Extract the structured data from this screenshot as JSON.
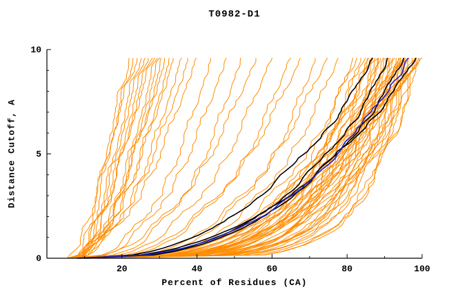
{
  "chart_data": {
    "type": "line",
    "title": "T0982-D1",
    "xlabel": "Percent of Residues (CA)",
    "ylabel": "Distance Cutoff, A",
    "xlim": [
      0,
      100
    ],
    "ylim": [
      0,
      10
    ],
    "x_major_ticks": [
      20,
      40,
      60,
      80,
      100
    ],
    "x_minor_step": 10,
    "y_major_ticks": [
      0,
      5,
      10
    ],
    "y_minor_step": 1,
    "axis_color": "#000000",
    "cutoff_max": 9.6,
    "curve_format": [
      "start_pct_at_cutoff0",
      "end_pct_at_cutoff9.6",
      "shape_exponent"
    ],
    "series_groups": [
      {
        "name": "prediction-models",
        "color": "#ff8c00",
        "width": 1,
        "noise": 1.5,
        "curves": [
          [
            6,
            100,
            0.16
          ],
          [
            8,
            99.5,
            0.15
          ],
          [
            7,
            99,
            0.2
          ],
          [
            9,
            99,
            0.24
          ],
          [
            10,
            98.5,
            0.18
          ],
          [
            8,
            98,
            0.3
          ],
          [
            11,
            98,
            0.22
          ],
          [
            7,
            97.5,
            0.17
          ],
          [
            9,
            97,
            0.27
          ],
          [
            12,
            97,
            0.2
          ],
          [
            8,
            96.5,
            0.33
          ],
          [
            10,
            96,
            0.19
          ],
          [
            6,
            96,
            0.26
          ],
          [
            9,
            95.5,
            0.22
          ],
          [
            11,
            95,
            0.3
          ],
          [
            7,
            95,
            0.18
          ],
          [
            10,
            94.5,
            0.25
          ],
          [
            8,
            94,
            0.21
          ],
          [
            12,
            94,
            0.35
          ],
          [
            9,
            93.5,
            0.2
          ],
          [
            7,
            93,
            0.28
          ],
          [
            10,
            92.5,
            0.23
          ],
          [
            8,
            92,
            0.18
          ],
          [
            11,
            91.5,
            0.32
          ],
          [
            9,
            91,
            0.24
          ],
          [
            6,
            90.5,
            0.2
          ],
          [
            10,
            90,
            0.29
          ],
          [
            8,
            89.5,
            0.22
          ],
          [
            12,
            89,
            0.26
          ],
          [
            9,
            88,
            0.19
          ],
          [
            7,
            87.5,
            0.31
          ],
          [
            10,
            87,
            0.24
          ],
          [
            8,
            86,
            0.21
          ],
          [
            11,
            85,
            0.27
          ],
          [
            9,
            84,
            0.23
          ],
          [
            7,
            83,
            0.3
          ],
          [
            10,
            82,
            0.25
          ],
          [
            8,
            78,
            0.3
          ],
          [
            9,
            75,
            0.35
          ],
          [
            7,
            72,
            0.28
          ],
          [
            10,
            68,
            0.4
          ],
          [
            8,
            65,
            0.33
          ],
          [
            9,
            60,
            0.38
          ],
          [
            7,
            56,
            0.42
          ],
          [
            8,
            52,
            0.36
          ],
          [
            10,
            48,
            0.45
          ],
          [
            7,
            44,
            0.4
          ],
          [
            6,
            40,
            0.5
          ],
          [
            8,
            38,
            0.55
          ],
          [
            7,
            36,
            0.5
          ],
          [
            9,
            34,
            0.6
          ],
          [
            6,
            33,
            0.5
          ],
          [
            8,
            32,
            0.65
          ],
          [
            7,
            31,
            0.55
          ],
          [
            9,
            30,
            0.6
          ],
          [
            6,
            29,
            0.5
          ],
          [
            8,
            28,
            0.7
          ],
          [
            7,
            27,
            0.6
          ],
          [
            6,
            26,
            0.55
          ],
          [
            8,
            25,
            0.65
          ],
          [
            7,
            24,
            0.6
          ],
          [
            6,
            23,
            0.7
          ],
          [
            9,
            22,
            0.75
          ],
          [
            7,
            21,
            0.65
          ],
          [
            5,
            98,
            0.14
          ],
          [
            6,
            95,
            0.16
          ],
          [
            13,
            93,
            0.28
          ],
          [
            12,
            90,
            0.2
          ],
          [
            11,
            88,
            0.34
          ],
          [
            13,
            85,
            0.26
          ]
        ]
      },
      {
        "name": "highlighted-models",
        "color": "#000000",
        "width": 1.6,
        "noise": 0.9,
        "curves": [
          [
            9,
            99,
            0.42
          ],
          [
            10,
            96,
            0.38
          ],
          [
            8,
            92,
            0.36
          ],
          [
            11,
            88,
            0.45
          ]
        ]
      },
      {
        "name": "reference-model",
        "color": "#2222cc",
        "width": 1.6,
        "noise": 0.9,
        "curves": [
          [
            10,
            97,
            0.4
          ]
        ]
      }
    ]
  }
}
